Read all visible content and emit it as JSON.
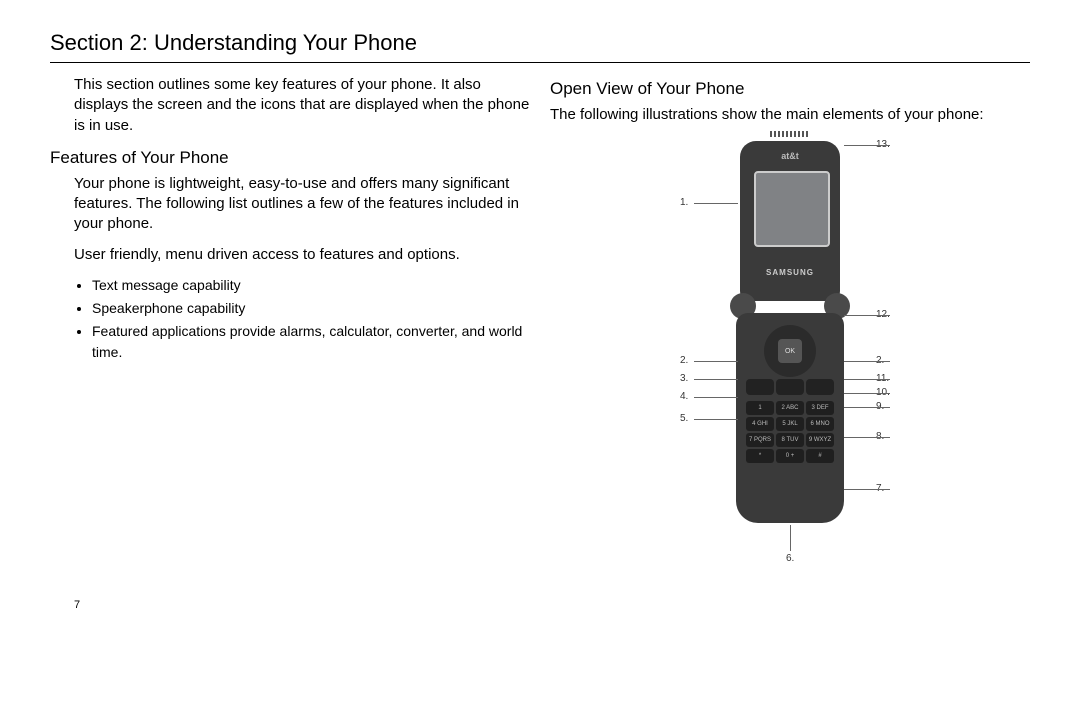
{
  "section_title": "Section 2: Understanding Your Phone",
  "left": {
    "intro": "This section outlines some key features of your phone. It also displays the screen and the icons that are displayed when the phone is in use.",
    "subhead": "Features of Your Phone",
    "p1": "Your phone is lightweight, easy-to-use and offers many significant features. The following list outlines a few of the features included in your phone.",
    "p2": "User friendly, menu driven access to features and options.",
    "bullets": [
      "Text message capability",
      "Speakerphone capability",
      "Featured applications provide alarms, calculator, converter, and world time."
    ]
  },
  "right": {
    "subhead": "Open View of Your Phone",
    "p": "The following illustrations show the main elements of your phone:"
  },
  "illus": {
    "brand_top": "at&t",
    "brand_bottom": "SAMSUNG",
    "ok": "OK",
    "keypad": [
      [
        "1",
        "2 ABC",
        "3 DEF"
      ],
      [
        "4 GHI",
        "5 JKL",
        "6 MNO"
      ],
      [
        "7 PQRS",
        "8 TUV",
        "9 WXYZ"
      ],
      [
        "*",
        "0 +",
        "#"
      ]
    ],
    "labels_left": [
      "1.",
      "2.",
      "3.",
      "4.",
      "5."
    ],
    "labels_right": [
      "13.",
      "12.",
      "2.",
      "11.",
      "10.",
      "9.",
      "8.",
      "7."
    ],
    "label_bottom": "6.",
    "colors": {
      "phone": "#3a3a3a",
      "screen": "#808285",
      "key": "#1f1f1f",
      "text": "#333333",
      "line": "#666666"
    }
  },
  "page_number": "7"
}
